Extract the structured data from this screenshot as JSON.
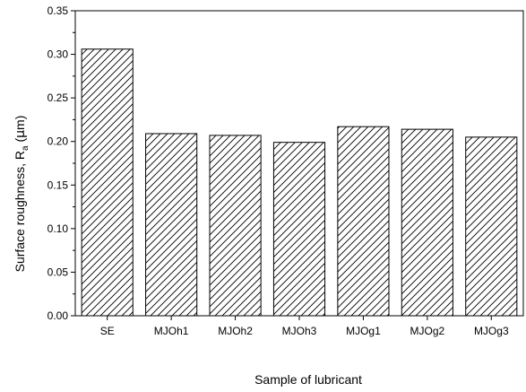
{
  "chart_data": {
    "type": "bar",
    "categories": [
      "SE",
      "MJOh1",
      "MJOh2",
      "MJOh3",
      "MJOg1",
      "MJOg2",
      "MJOg3"
    ],
    "values": [
      0.306,
      0.209,
      0.207,
      0.199,
      0.217,
      0.214,
      0.205
    ],
    "title": "",
    "xlabel": "Sample of lubricant",
    "ylabel": {
      "prefix": "Surface roughness, R",
      "subscript": "a",
      "unit_open": " (",
      "unit_symbol": "μ",
      "unit_rest": "m)"
    },
    "ylim": [
      0,
      0.35
    ],
    "yticks": [
      "0.00",
      "0.05",
      "0.10",
      "0.15",
      "0.20",
      "0.25",
      "0.30",
      "0.35"
    ],
    "grid": false,
    "legend": "none",
    "bar_fill": "hatched diagonal",
    "colors": {
      "bar_stroke": "#000000",
      "hatch": "#000000",
      "background": "#ffffff"
    }
  }
}
